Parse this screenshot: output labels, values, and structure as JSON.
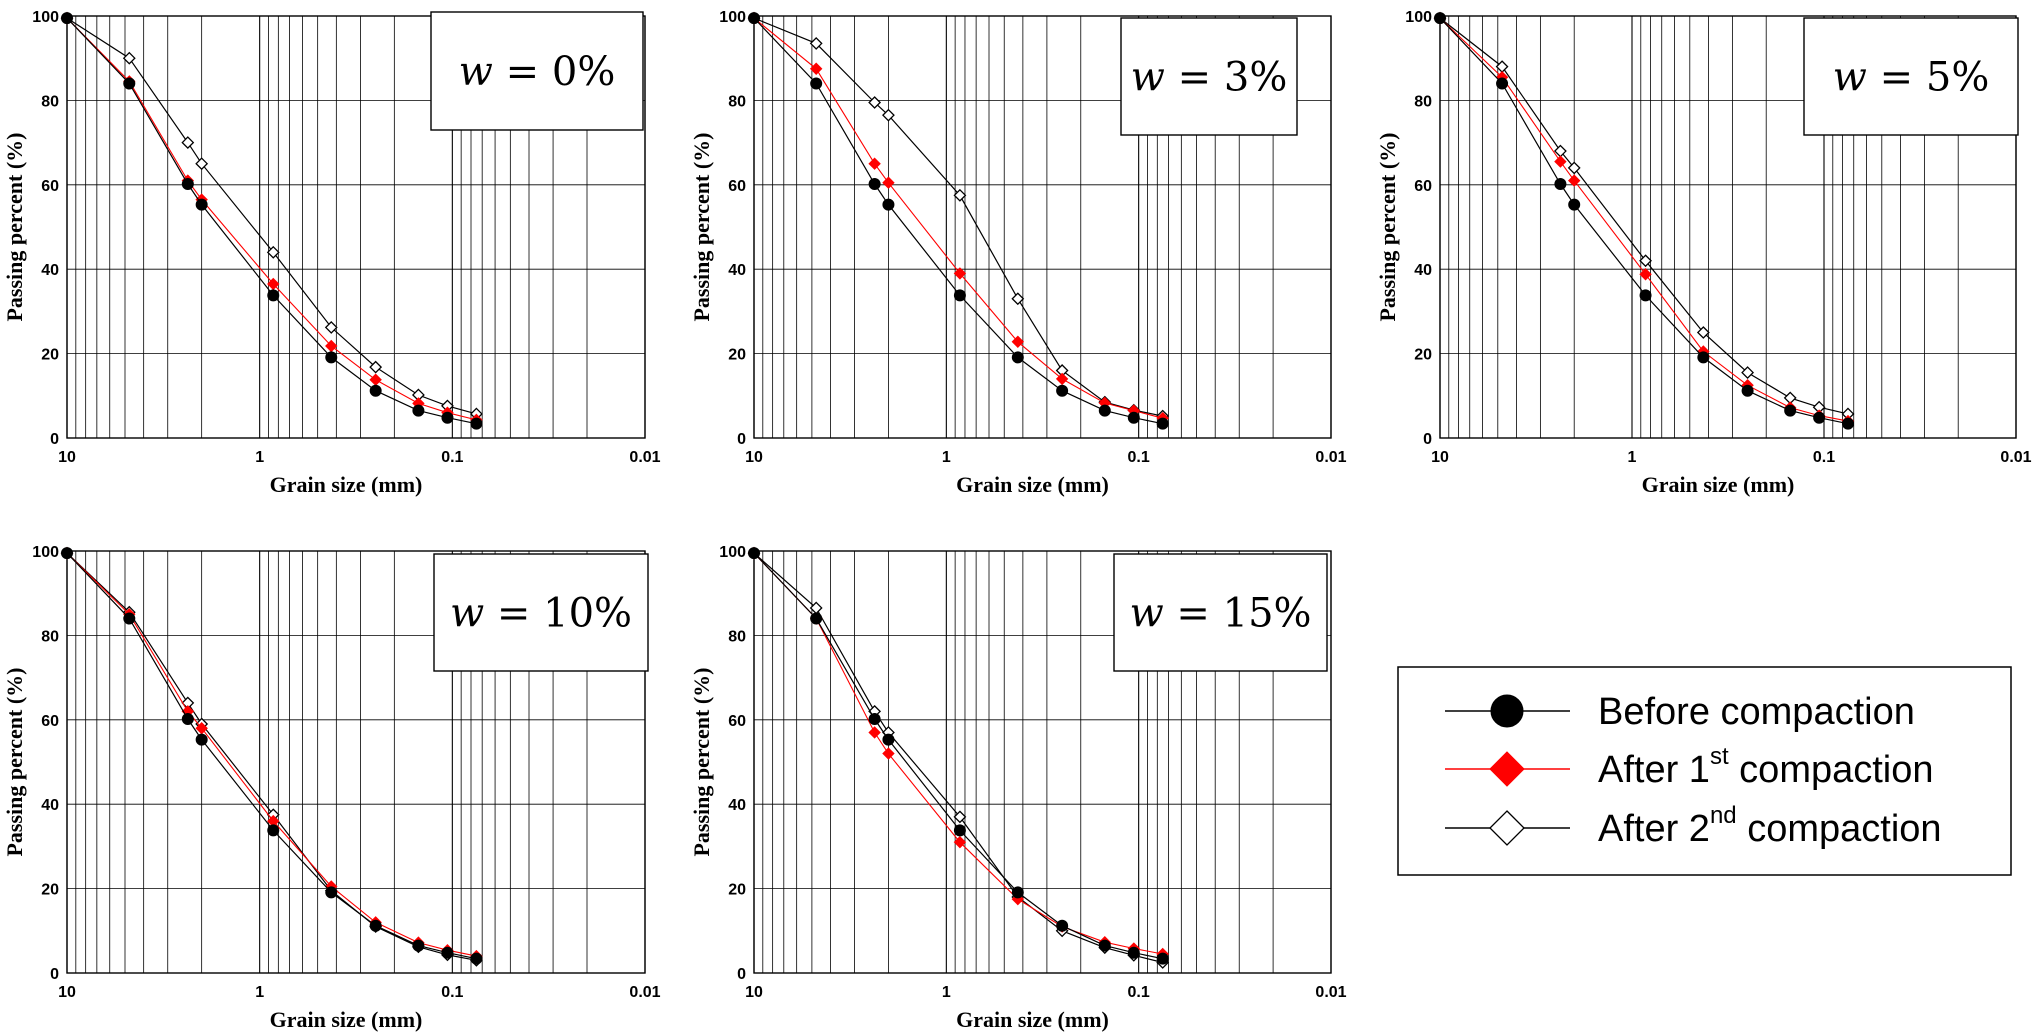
{
  "colors": {
    "before": "#000000",
    "after1": "#ff0000",
    "after2": "#000000"
  },
  "legend": {
    "items": [
      {
        "key": "before",
        "label": "Before compaction",
        "marker": "filled-circle",
        "color": "#000000"
      },
      {
        "key": "after1",
        "label": "After 1",
        "sup": "st",
        "label_end": "compaction",
        "marker": "filled-diamond",
        "color": "#ff0000"
      },
      {
        "key": "after2",
        "label": "After 2",
        "sup": "nd",
        "label_end": "compaction",
        "marker": "open-diamond",
        "color": "#000000"
      }
    ]
  },
  "chart_data": [
    {
      "type": "line",
      "title": "w = 0%",
      "title_var": "w",
      "title_rest": " = 0%",
      "xlabel": "Grain size (mm)",
      "ylabel": "Passing percent (%)",
      "xscale": "log",
      "xlim": [
        10,
        0.01
      ],
      "xlim_note": "reversed axis",
      "ylim": [
        0,
        100
      ],
      "xticks": [
        "10",
        "1",
        "0.1",
        "0.01"
      ],
      "yticks": [
        "0",
        "20",
        "40",
        "60",
        "80",
        "100"
      ],
      "grid": true,
      "series": [
        {
          "name": "Before compaction",
          "key": "before",
          "x": [
            10,
            4.75,
            2.36,
            2.0,
            0.85,
            0.425,
            0.25,
            0.15,
            0.106,
            0.075
          ],
          "y": [
            99.5,
            84,
            60.2,
            55.3,
            33.8,
            19.1,
            11.2,
            6.5,
            4.8,
            3.4
          ]
        },
        {
          "name": "After 1st compaction",
          "key": "after1",
          "x": [
            10,
            4.75,
            2.36,
            2.0,
            0.85,
            0.425,
            0.25,
            0.15,
            0.106,
            0.075
          ],
          "y": [
            99.5,
            84.5,
            61,
            56.5,
            36.5,
            21.8,
            13.8,
            8.2,
            6,
            4.3
          ]
        },
        {
          "name": "After 2nd compaction",
          "key": "after2",
          "x": [
            10,
            4.75,
            2.36,
            2.0,
            0.85,
            0.425,
            0.25,
            0.15,
            0.106,
            0.075
          ],
          "y": [
            99.5,
            90,
            70,
            65,
            44,
            26.2,
            16.8,
            10.2,
            7.6,
            5.7
          ]
        }
      ]
    },
    {
      "type": "line",
      "title": "w = 3%",
      "title_var": "w",
      "title_rest": " = 3%",
      "xlabel": "Grain size (mm)",
      "ylabel": "Passing percent (%)",
      "xscale": "log",
      "xlim": [
        10,
        0.01
      ],
      "xlim_note": "reversed axis",
      "ylim": [
        0,
        100
      ],
      "xticks": [
        "10",
        "1",
        "0.1",
        "0.01"
      ],
      "yticks": [
        "0",
        "20",
        "40",
        "60",
        "80",
        "100"
      ],
      "grid": true,
      "series": [
        {
          "name": "Before compaction",
          "key": "before",
          "x": [
            10,
            4.75,
            2.36,
            2.0,
            0.85,
            0.425,
            0.25,
            0.15,
            0.106,
            0.075
          ],
          "y": [
            99.5,
            84,
            60.2,
            55.3,
            33.8,
            19.1,
            11.2,
            6.5,
            4.8,
            3.4
          ]
        },
        {
          "name": "After 1st compaction",
          "key": "after1",
          "x": [
            10,
            4.75,
            2.36,
            2.0,
            0.85,
            0.425,
            0.25,
            0.15,
            0.106,
            0.075
          ],
          "y": [
            99.5,
            87.5,
            65,
            60.5,
            39,
            22.8,
            14,
            8.3,
            6.5,
            4.7
          ]
        },
        {
          "name": "After 2nd compaction",
          "key": "after2",
          "x": [
            10,
            4.75,
            2.36,
            2.0,
            0.85,
            0.425,
            0.25,
            0.15,
            0.106,
            0.075
          ],
          "y": [
            99.5,
            93.5,
            79.5,
            76.5,
            57.5,
            33,
            16,
            8.5,
            6.6,
            5.2
          ]
        }
      ]
    },
    {
      "type": "line",
      "title": "w = 5%",
      "title_var": "w",
      "title_rest": " = 5%",
      "xlabel": "Grain size (mm)",
      "ylabel": "Passing percent (%)",
      "xscale": "log",
      "xlim": [
        10,
        0.01
      ],
      "xlim_note": "reversed axis",
      "ylim": [
        0,
        100
      ],
      "xticks": [
        "10",
        "1",
        "0.1",
        "0.01"
      ],
      "yticks": [
        "0",
        "20",
        "40",
        "60",
        "80",
        "100"
      ],
      "grid": true,
      "series": [
        {
          "name": "Before compaction",
          "key": "before",
          "x": [
            10,
            4.75,
            2.36,
            2.0,
            0.85,
            0.425,
            0.25,
            0.15,
            0.106,
            0.075
          ],
          "y": [
            99.5,
            84,
            60.2,
            55.3,
            33.8,
            19.1,
            11.2,
            6.5,
            4.8,
            3.4
          ]
        },
        {
          "name": "After 1st compaction",
          "key": "after1",
          "x": [
            10,
            4.75,
            2.36,
            2.0,
            0.85,
            0.425,
            0.25,
            0.15,
            0.106,
            0.075
          ],
          "y": [
            99.5,
            85.5,
            65.5,
            61,
            38.8,
            20.5,
            12.5,
            7.2,
            5.3,
            4
          ]
        },
        {
          "name": "After 2nd compaction",
          "key": "after2",
          "x": [
            10,
            4.75,
            2.36,
            2.0,
            0.85,
            0.425,
            0.25,
            0.15,
            0.106,
            0.075
          ],
          "y": [
            99.5,
            88,
            68,
            64,
            42,
            25,
            15.5,
            9.5,
            7.3,
            5.7
          ]
        }
      ]
    },
    {
      "type": "line",
      "title": "w = 10%",
      "title_var": "w",
      "title_rest": " = 10%",
      "xlabel": "Grain size (mm)",
      "ylabel": "Passing percent (%)",
      "xscale": "log",
      "xlim": [
        10,
        0.01
      ],
      "xlim_note": "reversed axis",
      "ylim": [
        0,
        100
      ],
      "xticks": [
        "10",
        "1",
        "0.1",
        "0.01"
      ],
      "yticks": [
        "0",
        "20",
        "40",
        "60",
        "80",
        "100"
      ],
      "grid": true,
      "series": [
        {
          "name": "Before compaction",
          "key": "before",
          "x": [
            10,
            4.75,
            2.36,
            2.0,
            0.85,
            0.425,
            0.25,
            0.15,
            0.106,
            0.075
          ],
          "y": [
            99.5,
            84,
            60.2,
            55.3,
            33.8,
            19.1,
            11.2,
            6.5,
            4.8,
            3.4
          ]
        },
        {
          "name": "After 1st compaction",
          "key": "after1",
          "x": [
            10,
            4.75,
            2.36,
            2.0,
            0.85,
            0.425,
            0.25,
            0.15,
            0.106,
            0.075
          ],
          "y": [
            99.5,
            85,
            62,
            58,
            36,
            20.5,
            12,
            7.2,
            5.4,
            4
          ]
        },
        {
          "name": "After 2nd compaction",
          "key": "after2",
          "x": [
            10,
            4.75,
            2.36,
            2.0,
            0.85,
            0.425,
            0.25,
            0.15,
            0.106,
            0.075
          ],
          "y": [
            99.5,
            85.5,
            64,
            59,
            37.5,
            19.5,
            11,
            6.2,
            4.3,
            3
          ]
        }
      ]
    },
    {
      "type": "line",
      "title": "w = 15%",
      "title_var": "w",
      "title_rest": " = 15%",
      "xlabel": "Grain size (mm)",
      "ylabel": "Passing percent (%)",
      "xscale": "log",
      "xlim": [
        10,
        0.01
      ],
      "xlim_note": "reversed axis",
      "ylim": [
        0,
        100
      ],
      "xticks": [
        "10",
        "1",
        "0.1",
        "0.01"
      ],
      "yticks": [
        "0",
        "20",
        "40",
        "60",
        "80",
        "100"
      ],
      "grid": true,
      "series": [
        {
          "name": "Before compaction",
          "key": "before",
          "x": [
            10,
            4.75,
            2.36,
            2.0,
            0.85,
            0.425,
            0.25,
            0.15,
            0.106,
            0.075
          ],
          "y": [
            99.5,
            84,
            60.2,
            55.3,
            33.8,
            19.1,
            11.2,
            6.5,
            4.8,
            3.4
          ]
        },
        {
          "name": "After 1st compaction",
          "key": "after1",
          "x": [
            10,
            4.75,
            2.36,
            2.0,
            0.85,
            0.425,
            0.25,
            0.15,
            0.106,
            0.075
          ],
          "y": [
            99.5,
            84,
            57,
            52,
            31,
            17.5,
            11,
            7.3,
            5.8,
            4.5
          ]
        },
        {
          "name": "After 2nd compaction",
          "key": "after2",
          "x": [
            10,
            4.75,
            2.36,
            2.0,
            0.85,
            0.425,
            0.25,
            0.15,
            0.106,
            0.075
          ],
          "y": [
            99.5,
            86.5,
            62,
            57,
            37,
            18,
            10,
            6,
            4.2,
            2.5
          ]
        }
      ]
    }
  ]
}
